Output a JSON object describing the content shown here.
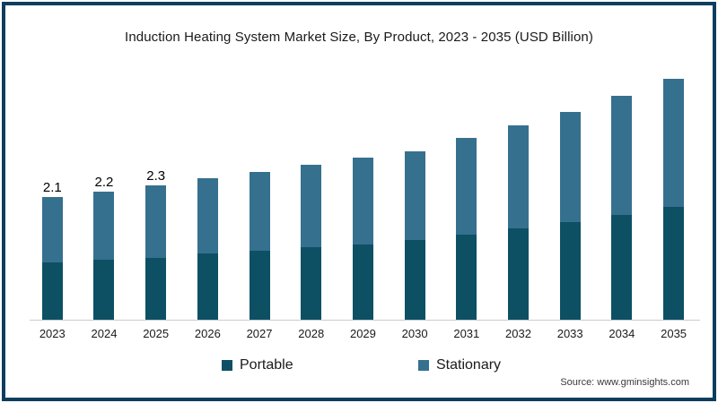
{
  "title": "Induction Heating System Market Size, By Product, 2023 - 2035 (USD Billion)",
  "source": "Source: www.gminsights.com",
  "colors": {
    "frame_border": "#0d3e5f",
    "portable": "#0d5064",
    "stationary": "#36708f",
    "axis_line": "#cccccc",
    "background": "#ffffff"
  },
  "legend": {
    "items": [
      {
        "label": "Portable",
        "color": "#0d5064"
      },
      {
        "label": "Stationary",
        "color": "#36708f"
      }
    ]
  },
  "chart_data": {
    "type": "bar",
    "stacked": true,
    "title": "Induction Heating System Market Size, By Product, 2023 - 2035 (USD Billion)",
    "xlabel": "",
    "ylabel": "USD Billion",
    "ylim": [
      0,
      4.5
    ],
    "grid": false,
    "legend_position": "bottom",
    "y_axis_visible": false,
    "categories": [
      "2023",
      "2024",
      "2025",
      "2026",
      "2027",
      "2028",
      "2029",
      "2030",
      "2031",
      "2032",
      "2033",
      "2034",
      "2035"
    ],
    "series": [
      {
        "name": "Portable",
        "color": "#0d5064",
        "values": [
          0.98,
          1.02,
          1.06,
          1.13,
          1.18,
          1.24,
          1.29,
          1.36,
          1.46,
          1.57,
          1.67,
          1.8,
          1.94
        ]
      },
      {
        "name": "Stationary",
        "color": "#36708f",
        "values": [
          1.12,
          1.18,
          1.24,
          1.29,
          1.35,
          1.41,
          1.48,
          1.53,
          1.65,
          1.76,
          1.89,
          2.03,
          2.18
        ]
      }
    ],
    "totals": [
      2.1,
      2.2,
      2.3,
      2.42,
      2.53,
      2.65,
      2.77,
      2.89,
      3.11,
      3.33,
      3.56,
      3.83,
      4.12
    ],
    "total_labels": [
      "2.1",
      "2.2",
      "2.3",
      "",
      "",
      "",
      "",
      "",
      "",
      "",
      "",
      "",
      ""
    ]
  }
}
